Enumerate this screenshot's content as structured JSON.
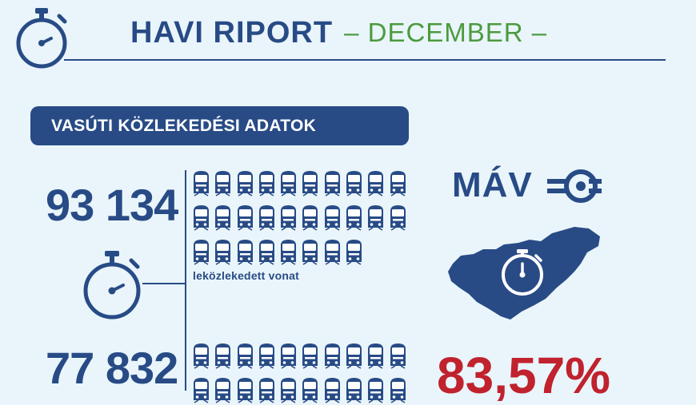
{
  "header": {
    "title": "HAVI RIPORT",
    "subtitle": "– DECEMBER –",
    "icon": "stopwatch-icon"
  },
  "section": {
    "title": "VASÚTI KÖZLEKEDÉSI ADATOK"
  },
  "stats": [
    {
      "value": "93 134",
      "caption": "leközlekedett vonat",
      "icon": "train-icon",
      "icons_shown": 28
    },
    {
      "value": "77 832",
      "caption": "",
      "icon": "train-icon",
      "icons_shown": 20
    }
  ],
  "brand": {
    "name": "MÁV",
    "logo_icon": "mav-wing-icon"
  },
  "map": {
    "icon": "hungary-map-icon",
    "inner_icon": "stopwatch-icon"
  },
  "highlight": {
    "value": "83,57%"
  },
  "colors": {
    "background": "#e9f5fa",
    "navy": "#284b86",
    "green": "#4c9a3f",
    "red": "#c0222e"
  }
}
